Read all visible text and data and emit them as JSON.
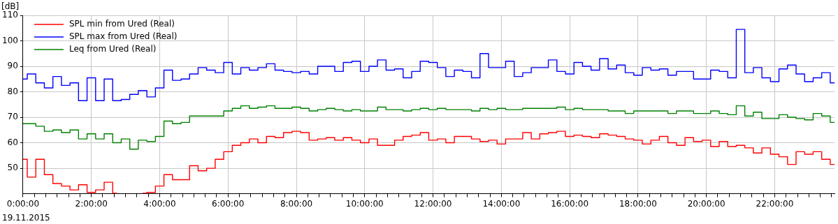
{
  "chart_data": {
    "type": "step",
    "ylabel": "[dB]",
    "annotations": [
      "19.11.2015"
    ],
    "x": [
      0,
      0.25,
      0.5,
      0.75,
      1,
      1.25,
      1.5,
      1.75,
      2,
      2.25,
      2.5,
      2.75,
      3,
      3.25,
      3.5,
      3.75,
      4,
      4.25,
      4.5,
      4.75,
      5,
      5.25,
      5.5,
      5.75,
      6,
      6.25,
      6.5,
      6.75,
      7,
      7.25,
      7.5,
      7.75,
      8,
      8.25,
      8.5,
      8.75,
      9,
      9.25,
      9.5,
      9.75,
      10,
      10.25,
      10.5,
      10.75,
      11,
      11.25,
      11.5,
      11.75,
      12,
      12.25,
      12.5,
      12.75,
      13,
      13.25,
      13.5,
      13.75,
      14,
      14.25,
      14.5,
      14.75,
      15,
      15.25,
      15.5,
      15.75,
      16,
      16.25,
      16.5,
      16.75,
      17,
      17.25,
      17.5,
      17.75,
      18,
      18.25,
      18.5,
      18.75,
      19,
      19.25,
      19.5,
      19.75,
      20,
      20.25,
      20.5,
      20.75,
      21,
      21.25,
      21.5,
      21.75,
      22,
      22.25,
      22.5,
      22.75,
      23,
      23.25,
      23.5,
      23.75
    ],
    "series": [
      {
        "name": "SPL min from Ured (Real)",
        "color": "#ff0000",
        "values": [
          53.5,
          46.5,
          53.5,
          47.5,
          44,
          43,
          41.5,
          43.5,
          40.5,
          41.5,
          44.5,
          40.2,
          null,
          null,
          40.2,
          40.5,
          43,
          47.5,
          45.5,
          45.5,
          51,
          49,
          50,
          53.5,
          56.5,
          59,
          60,
          61.5,
          60,
          62.5,
          62,
          64,
          64.5,
          64,
          61,
          61.5,
          62,
          61,
          62,
          61,
          60,
          61.5,
          59,
          59,
          61,
          62.5,
          63,
          64,
          61,
          61.5,
          60,
          62.5,
          62.5,
          61.5,
          60.5,
          61,
          59.5,
          61.5,
          61.5,
          64,
          61.5,
          63.5,
          64,
          64.5,
          62.5,
          63,
          62.5,
          62,
          63.5,
          63,
          62.5,
          61.5,
          61,
          59.5,
          61,
          62.5,
          60,
          59,
          62,
          60.5,
          61,
          58.5,
          60.5,
          58.5,
          59,
          58,
          56,
          58,
          55.5,
          54.5,
          51.5,
          56.5,
          55.5,
          56.5,
          53.5,
          51.5
        ]
      },
      {
        "name": "SPL max from Ured (Real)",
        "color": "#0000ff",
        "values": [
          85,
          87,
          83.5,
          81.5,
          86,
          82.5,
          83.5,
          76.5,
          85.5,
          76.5,
          85,
          76.5,
          77,
          79,
          80.5,
          78,
          81.5,
          88.5,
          84.5,
          85,
          87,
          89.5,
          88.5,
          87.5,
          91.5,
          87,
          89.5,
          88.5,
          89.5,
          91,
          88.5,
          88,
          87.5,
          88,
          87,
          90,
          90,
          88,
          91.5,
          92,
          88,
          90,
          92.5,
          88.5,
          89,
          85.5,
          88,
          92,
          91.5,
          89.5,
          86,
          88.5,
          88,
          85.5,
          95,
          89.5,
          89.5,
          92,
          86,
          87.5,
          89.5,
          89.5,
          92.5,
          88,
          87,
          91.5,
          90,
          88.5,
          93,
          89,
          90.5,
          87.5,
          86.5,
          89.5,
          88.5,
          89,
          86.5,
          88,
          88,
          85,
          85,
          88.5,
          88,
          85.5,
          104.5,
          87.5,
          89.5,
          85.5,
          84,
          89,
          90.5,
          87,
          84,
          85.5,
          87.5,
          83.5
        ]
      },
      {
        "name": "Leq from Ured (Real)",
        "color": "#008000",
        "values": [
          67.5,
          67.5,
          66.5,
          64.5,
          65,
          64,
          65,
          61.5,
          63.5,
          61.5,
          63.5,
          60,
          61.5,
          57.5,
          61,
          60.5,
          62.5,
          68.5,
          67.5,
          68,
          70.5,
          70.5,
          70.5,
          70.5,
          72.5,
          73.5,
          74.5,
          73.5,
          74,
          74.5,
          73.5,
          73.5,
          74,
          73.5,
          72.5,
          73,
          73.5,
          73,
          72.5,
          73,
          72.5,
          72.5,
          74,
          73,
          73,
          72.5,
          73,
          73.5,
          73,
          73.5,
          73,
          73,
          73,
          72.5,
          73.5,
          73,
          73.5,
          73,
          73,
          73.5,
          73.5,
          73.5,
          73.5,
          74,
          73,
          73.5,
          73,
          73,
          73,
          72.5,
          72.5,
          71.5,
          72.5,
          72.5,
          72.5,
          72.5,
          71.5,
          72.5,
          72.5,
          71.5,
          71.5,
          72.5,
          71.5,
          71,
          74.5,
          70.5,
          72,
          69.5,
          69.5,
          71,
          70,
          69.5,
          69,
          71.5,
          70.5,
          68
        ]
      }
    ],
    "xlim": [
      0,
      23.75
    ],
    "xticks": [
      {
        "value": 0,
        "label": "0:00:00"
      },
      {
        "value": 0.3333,
        "label": null
      },
      {
        "value": 0.6667,
        "label": null
      },
      {
        "value": 1,
        "label": null
      },
      {
        "value": 1.3333,
        "label": null
      },
      {
        "value": 1.6667,
        "label": null
      },
      {
        "value": 2,
        "label": "2:00:00"
      },
      {
        "value": 2.3333,
        "label": null
      },
      {
        "value": 2.6667,
        "label": null
      },
      {
        "value": 3,
        "label": null
      },
      {
        "value": 3.3333,
        "label": null
      },
      {
        "value": 3.6667,
        "label": null
      },
      {
        "value": 4,
        "label": "4:00:00"
      },
      {
        "value": 4.3333,
        "label": null
      },
      {
        "value": 4.6667,
        "label": null
      },
      {
        "value": 5,
        "label": null
      },
      {
        "value": 5.3333,
        "label": null
      },
      {
        "value": 5.6667,
        "label": null
      },
      {
        "value": 6,
        "label": "6:00:00"
      },
      {
        "value": 6.3333,
        "label": null
      },
      {
        "value": 6.6667,
        "label": null
      },
      {
        "value": 7,
        "label": null
      },
      {
        "value": 7.3333,
        "label": null
      },
      {
        "value": 7.6667,
        "label": null
      },
      {
        "value": 8,
        "label": "8:00:00"
      },
      {
        "value": 8.3333,
        "label": null
      },
      {
        "value": 8.6667,
        "label": null
      },
      {
        "value": 9,
        "label": null
      },
      {
        "value": 9.3333,
        "label": null
      },
      {
        "value": 9.6667,
        "label": null
      },
      {
        "value": 10,
        "label": "10:00:00"
      },
      {
        "value": 10.3333,
        "label": null
      },
      {
        "value": 10.6667,
        "label": null
      },
      {
        "value": 11,
        "label": null
      },
      {
        "value": 11.3333,
        "label": null
      },
      {
        "value": 11.6667,
        "label": null
      },
      {
        "value": 12,
        "label": "12:00:00"
      },
      {
        "value": 12.3333,
        "label": null
      },
      {
        "value": 12.6667,
        "label": null
      },
      {
        "value": 13,
        "label": null
      },
      {
        "value": 13.3333,
        "label": null
      },
      {
        "value": 13.6667,
        "label": null
      },
      {
        "value": 14,
        "label": "14:00:00"
      },
      {
        "value": 14.3333,
        "label": null
      },
      {
        "value": 14.6667,
        "label": null
      },
      {
        "value": 15,
        "label": null
      },
      {
        "value": 15.3333,
        "label": null
      },
      {
        "value": 15.6667,
        "label": null
      },
      {
        "value": 16,
        "label": "16:00:00"
      },
      {
        "value": 16.3333,
        "label": null
      },
      {
        "value": 16.6667,
        "label": null
      },
      {
        "value": 17,
        "label": null
      },
      {
        "value": 17.3333,
        "label": null
      },
      {
        "value": 17.6667,
        "label": null
      },
      {
        "value": 18,
        "label": "18:00:00"
      },
      {
        "value": 18.3333,
        "label": null
      },
      {
        "value": 18.6667,
        "label": null
      },
      {
        "value": 19,
        "label": null
      },
      {
        "value": 19.3333,
        "label": null
      },
      {
        "value": 19.6667,
        "label": null
      },
      {
        "value": 20,
        "label": "20:00:00"
      },
      {
        "value": 20.3333,
        "label": null
      },
      {
        "value": 20.6667,
        "label": null
      },
      {
        "value": 21,
        "label": null
      },
      {
        "value": 21.3333,
        "label": null
      },
      {
        "value": 21.6667,
        "label": null
      },
      {
        "value": 22,
        "label": "22:00:00"
      },
      {
        "value": 22.3333,
        "label": null
      },
      {
        "value": 22.6667,
        "label": null
      },
      {
        "value": 23,
        "label": null
      },
      {
        "value": 23.3333,
        "label": null
      },
      {
        "value": 23.6667,
        "label": null
      }
    ],
    "ylim": [
      40,
      110
    ],
    "yticks": [
      50,
      60,
      70,
      80,
      90,
      100,
      110
    ],
    "grid": true,
    "legend": "top left"
  }
}
